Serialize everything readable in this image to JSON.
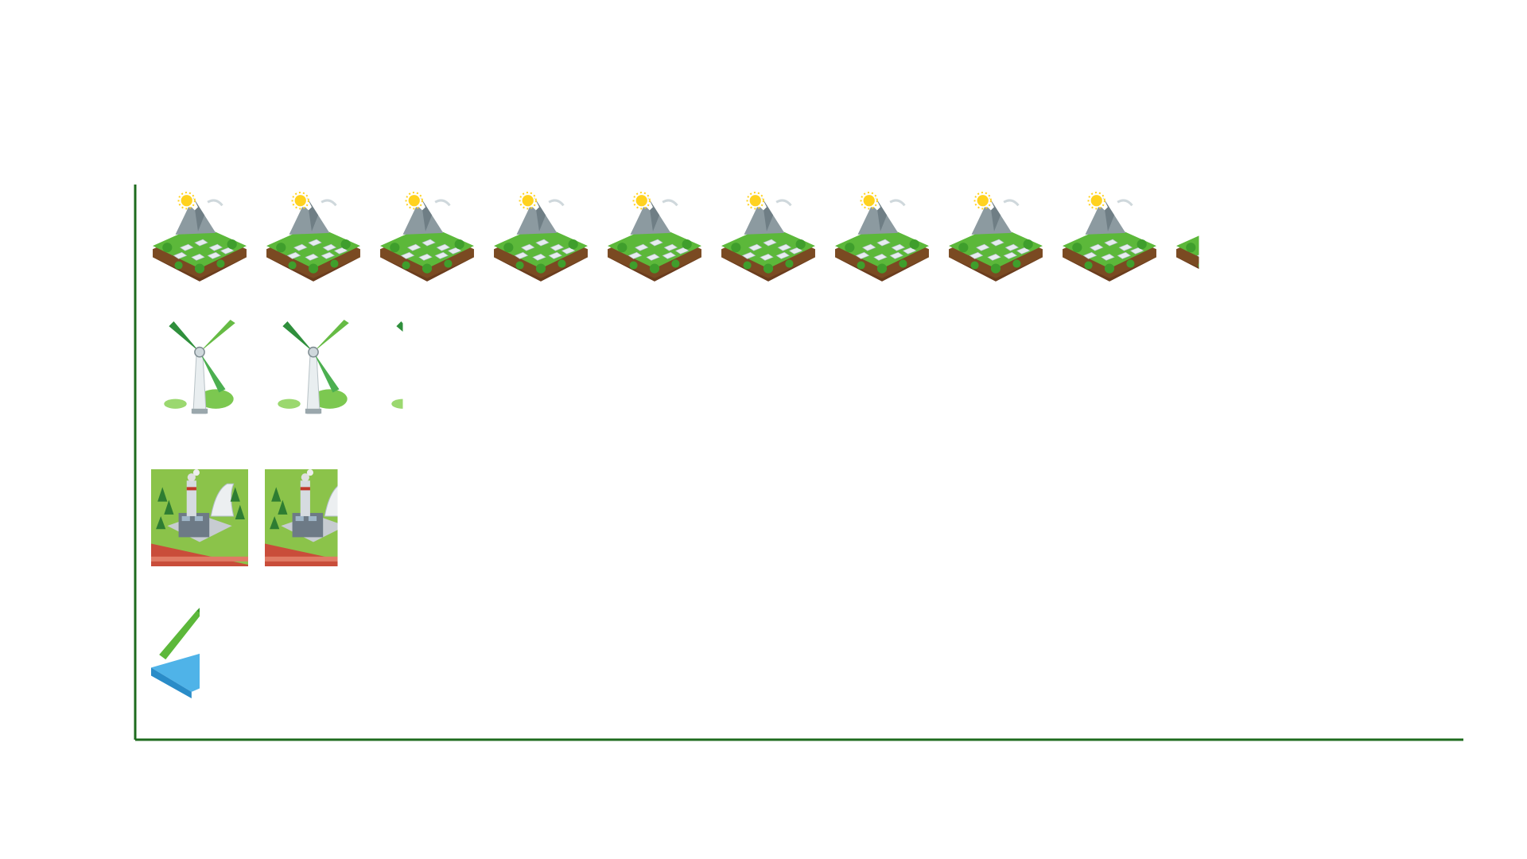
{
  "chart_data": {
    "type": "pictograph",
    "title": "",
    "xlabel": "",
    "ylabel": "",
    "axis_color": "#1e6b1e",
    "categories": [
      "",
      "",
      "",
      ""
    ],
    "icons": [
      "solar-farm-icon",
      "wind-turbine-icon",
      "power-plant-icon",
      "hydro-dam-icon"
    ],
    "values": [
      9.25,
      2.25,
      1.75,
      0.5
    ],
    "units_per_icon": 1
  }
}
